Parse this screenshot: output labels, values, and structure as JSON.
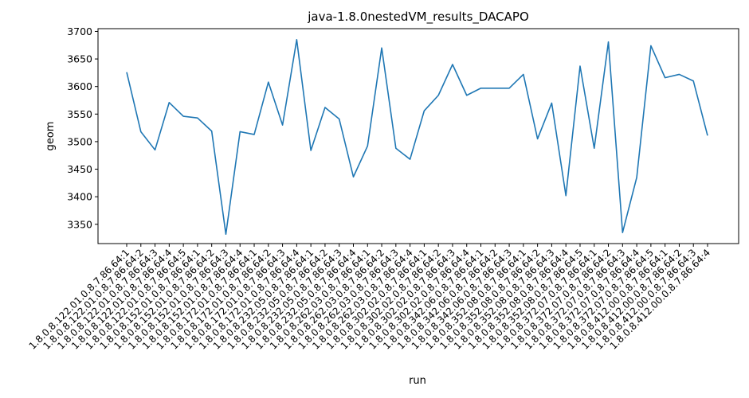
{
  "chart_data": {
    "type": "line",
    "title": "java-1.8.0nestedVM_results_DACAPO",
    "xlabel": "run",
    "ylabel": "geom",
    "ylim": [
      3315,
      3705
    ],
    "yticks": [
      3350,
      3400,
      3450,
      3500,
      3550,
      3600,
      3650,
      3700
    ],
    "grid": false,
    "line_color": "#1f77b4",
    "categories": [
      "1.8.0.8.122.01.0.8.7.86.64:1",
      "1.8.0.8.122.01.0.8.7.86.64:2",
      "1.8.0.8.122.01.0.8.7.86.64:3",
      "1.8.0.8.122.01.0.8.7.86.64:4",
      "1.8.0.8.122.01.0.8.7.86.64:5",
      "1.8.0.8.152.01.0.8.7.86.64:1",
      "1.8.0.8.152.01.0.8.7.86.64:2",
      "1.8.0.8.152.01.0.8.7.86.64:3",
      "1.8.0.8.152.01.0.8.7.86.64:4",
      "1.8.0.8.172.01.0.8.7.86.64:1",
      "1.8.0.8.172.01.0.8.7.86.64:2",
      "1.8.0.8.172.01.0.8.7.86.64:3",
      "1.8.0.8.172.01.0.8.7.86.64:4",
      "1.8.0.8.232.05.0.8.7.86.64:1",
      "1.8.0.8.232.05.0.8.7.86.64:2",
      "1.8.0.8.232.05.0.8.7.86.64:3",
      "1.8.0.8.232.05.0.8.7.86.64:4",
      "1.8.0.8.262.03.0.8.7.86.64:1",
      "1.8.0.8.262.03.0.8.7.86.64:2",
      "1.8.0.8.262.03.0.8.7.86.64:3",
      "1.8.0.8.262.03.0.8.7.86.64:4",
      "1.8.0.8.302.02.0.8.7.86.64:1",
      "1.8.0.8.302.02.0.8.7.86.64:2",
      "1.8.0.8.302.02.0.8.7.86.64:3",
      "1.8.0.8.302.02.0.8.7.86.64:4",
      "1.8.0.8.342.06.0.8.7.86.64:1",
      "1.8.0.8.342.06.0.8.7.86.64:2",
      "1.8.0.8.342.06.0.8.7.86.64:3",
      "1.8.0.8.352.08.0.8.7.86.64:1",
      "1.8.0.8.352.08.0.8.7.86.64:2",
      "1.8.0.8.352.08.0.8.7.86.64:3",
      "1.8.0.8.352.08.0.8.7.86.64:4",
      "1.8.0.8.352.08.0.8.7.86.64:5",
      "1.8.0.8.372.07.0.8.7.86.64:1",
      "1.8.0.8.372.07.0.8.7.86.64:2",
      "1.8.0.8.372.07.0.8.7.86.64:3",
      "1.8.0.8.372.07.0.8.7.86.64:4",
      "1.8.0.8.372.07.0.8.7.86.64:5",
      "1.8.0.8.412.00.0.8.7.86.64:1",
      "1.8.0.8.412.00.0.8.7.86.64:2",
      "1.8.0.8.412.00.0.8.7.86.64:3",
      "1.8.0.8.412.00.0.8.7.86.64:4"
    ],
    "values": [
      3626,
      3518,
      3485,
      3571,
      3546,
      3543,
      3519,
      3332,
      3518,
      3513,
      3608,
      3530,
      3685,
      3484,
      3562,
      3541,
      3436,
      3492,
      3670,
      3488,
      3468,
      3556,
      3584,
      3640,
      3584,
      3597,
      3597,
      3597,
      3622,
      3505,
      3570,
      3402,
      3637,
      3488,
      3681,
      3335,
      3435,
      3674,
      3616,
      3622,
      3610,
      3511
    ]
  }
}
